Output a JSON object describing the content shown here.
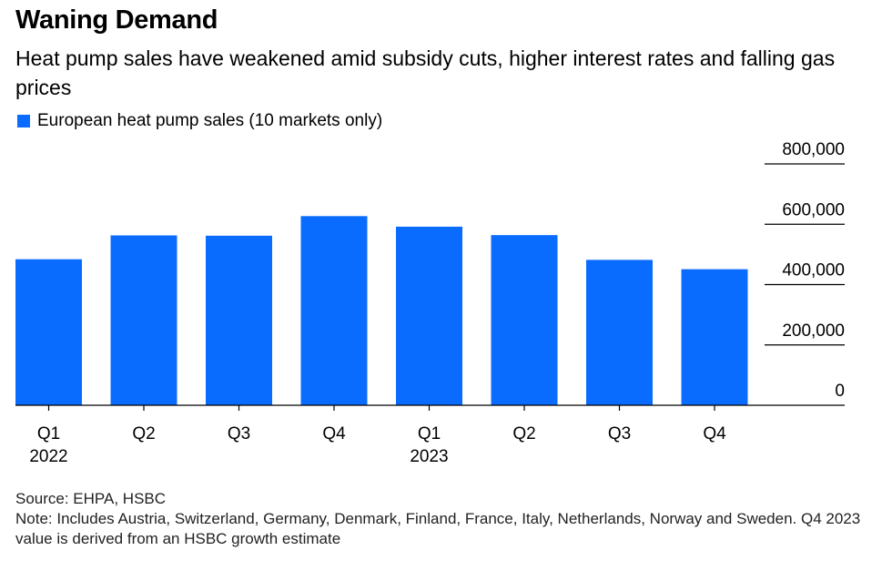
{
  "title": "Waning Demand",
  "subtitle": "Heat pump sales have weakened amid subsidy cuts, higher interest rates and falling gas prices",
  "source": "Source: EHPA, HSBC",
  "note": "Note: Includes Austria, Switzerland, Germany, Denmark, Finland, France, Italy, Netherlands, Norway and Sweden. Q4 2023 value is derived from an HSBC growth estimate",
  "colors": {
    "bar": "#0a6cff",
    "axis": "#000000"
  },
  "chart_data": {
    "type": "bar",
    "categories": [
      "Q1",
      "Q2",
      "Q3",
      "Q4",
      "Q1",
      "Q2",
      "Q3",
      "Q4"
    ],
    "year_labels": [
      "2022",
      "",
      "",
      "",
      "2023",
      "",
      "",
      ""
    ],
    "series": [
      {
        "name": "European heat pump sales (10 markets only)",
        "values": [
          484000,
          563000,
          562000,
          627000,
          592000,
          564000,
          482000,
          451000
        ]
      }
    ],
    "ylim": [
      0,
      800000
    ],
    "yticks": [
      0,
      200000,
      400000,
      600000,
      800000
    ],
    "ytick_labels": [
      "0",
      "200,000",
      "400,000",
      "600,000",
      "800,000"
    ],
    "y_axis_side": "right",
    "grid": false,
    "legend_position": "top-left",
    "xlabel": "",
    "ylabel": ""
  }
}
